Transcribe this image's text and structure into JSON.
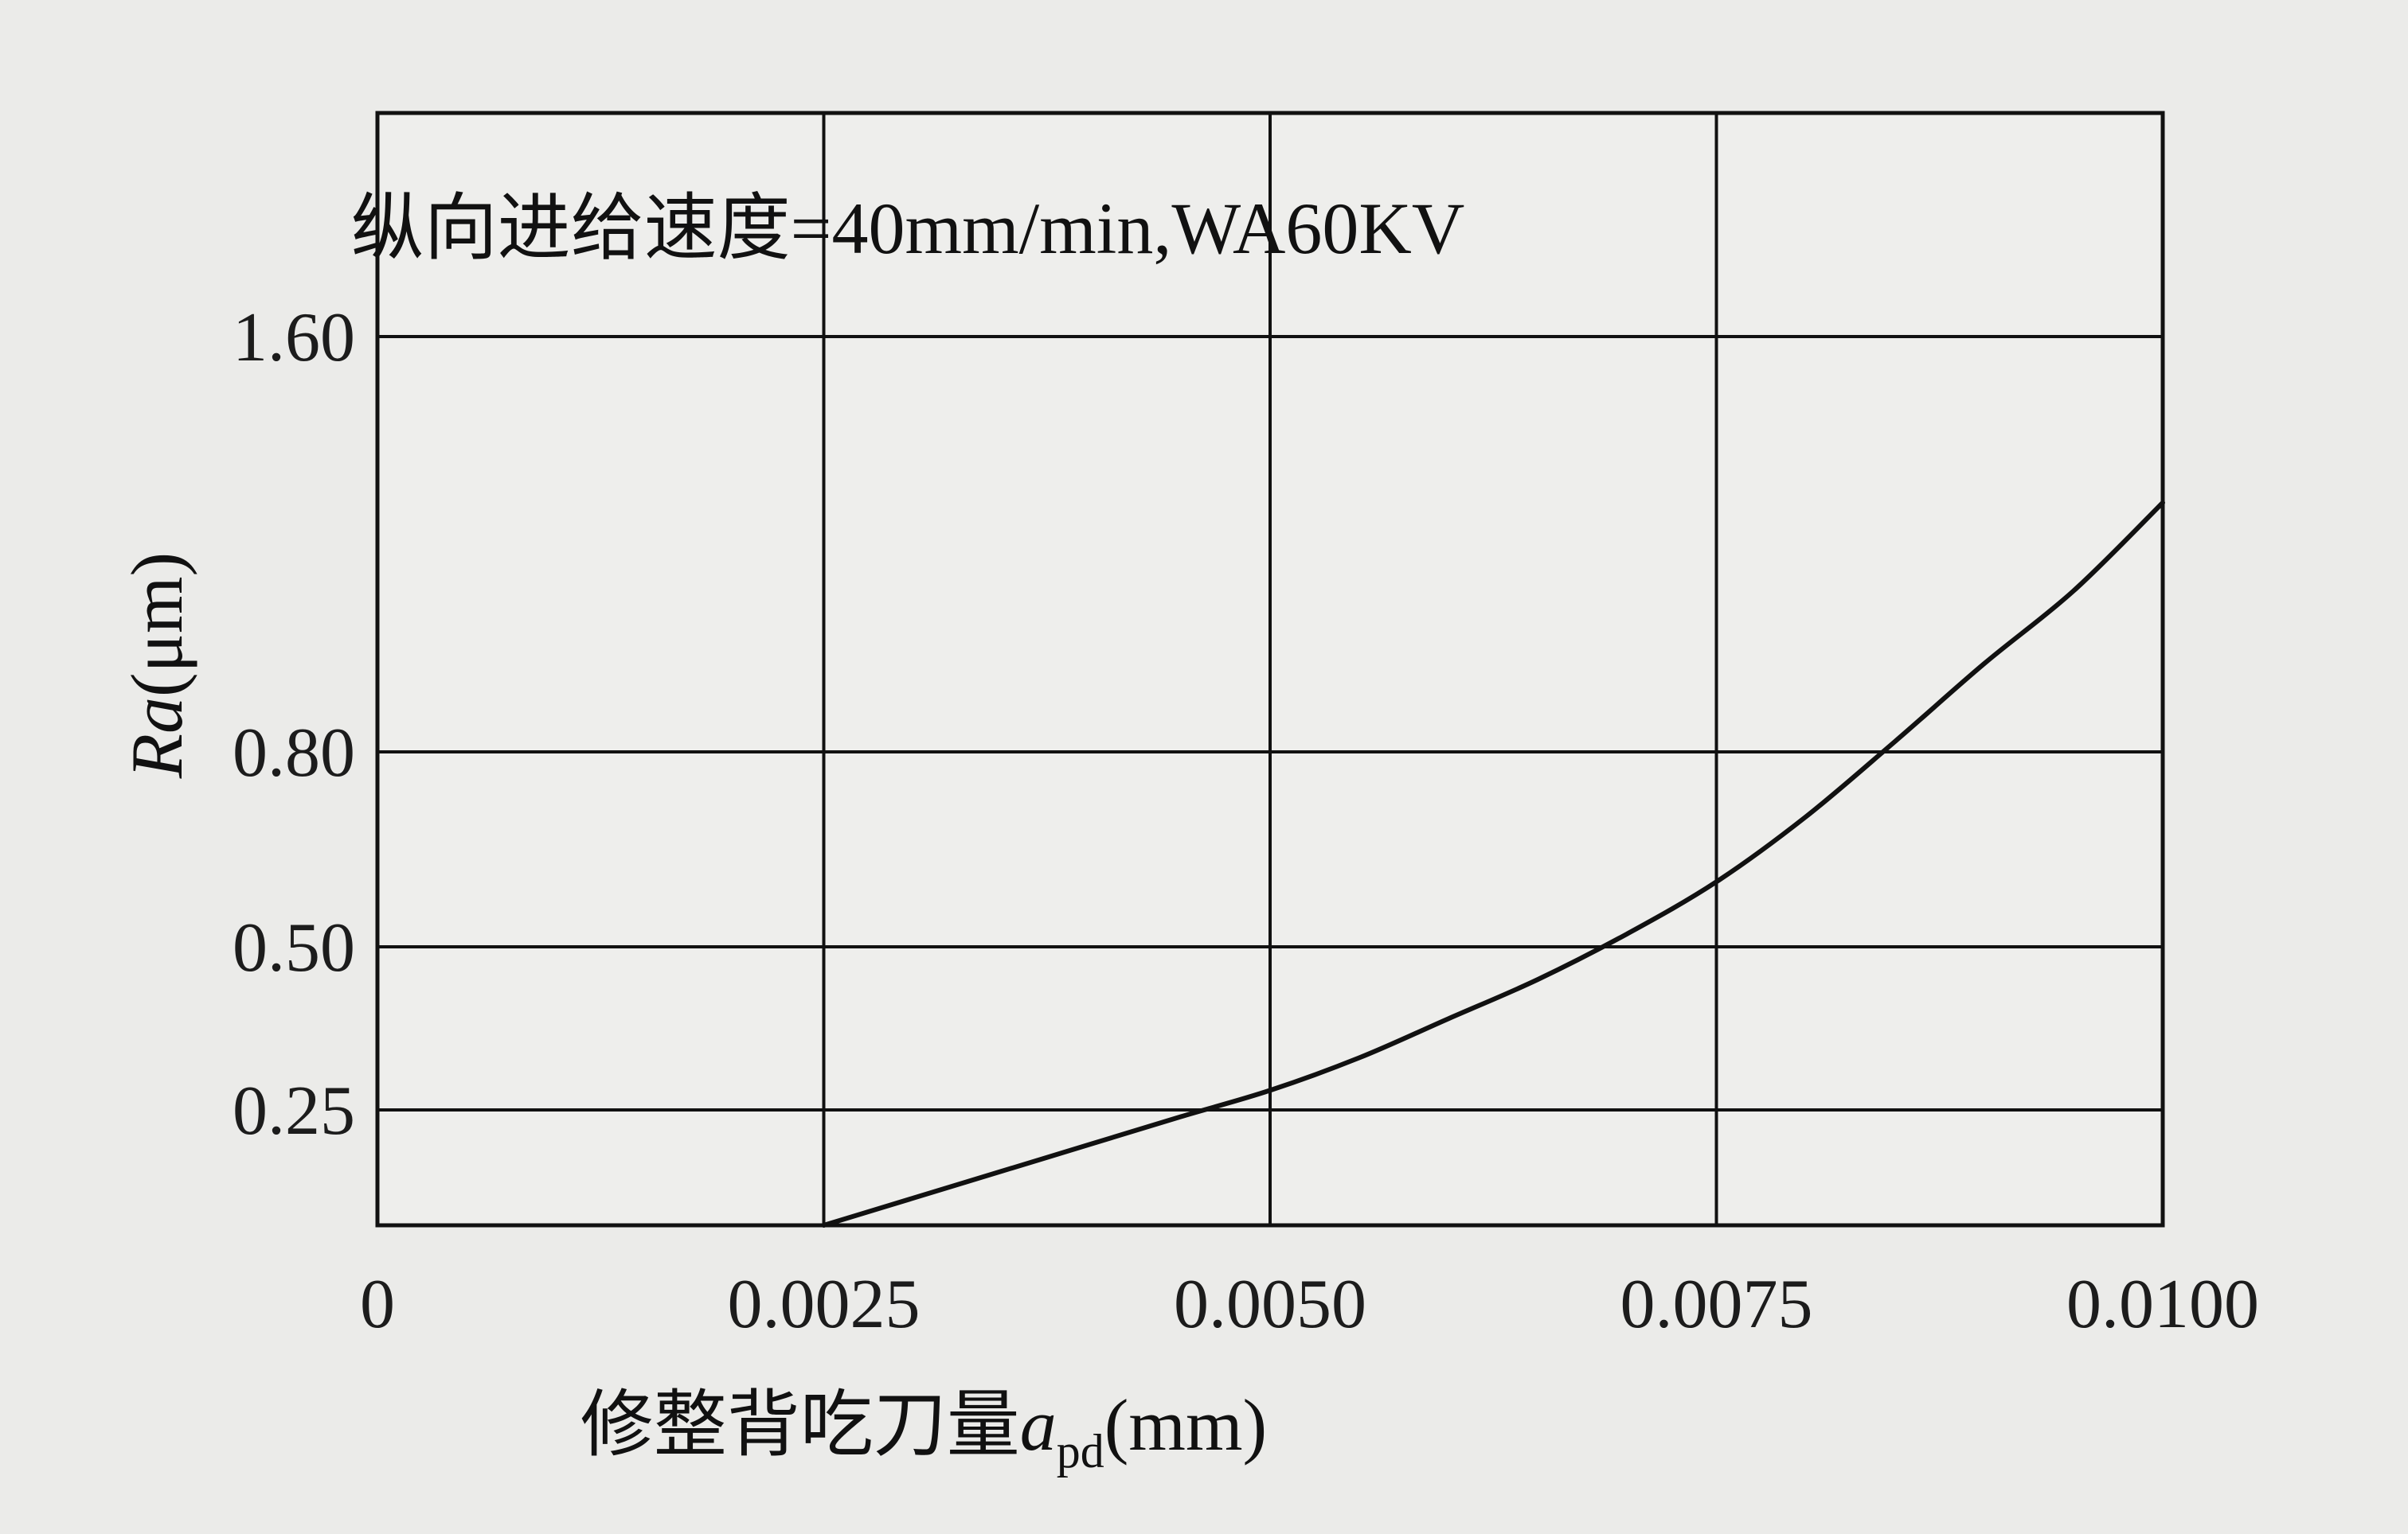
{
  "chart_data": {
    "type": "line",
    "title": "纵向进给速度=40mm/min,WA60KV",
    "xlabel": {
      "prefix": "修整背吃刀量",
      "symbol": "a",
      "subscript": "pd",
      "unit": "(mm)"
    },
    "ylabel": {
      "symbol": "Ra",
      "unit": "(μm)"
    },
    "x_ticks": [
      {
        "value": 0,
        "label": "0"
      },
      {
        "value": 0.0025,
        "label": "0.0025"
      },
      {
        "value": 0.005,
        "label": "0.0050"
      },
      {
        "value": 0.0075,
        "label": "0.0075"
      },
      {
        "value": 0.01,
        "label": "0.0100"
      }
    ],
    "y_ticks": [
      {
        "value": 0.25,
        "label": "0.25"
      },
      {
        "value": 0.5,
        "label": "0.50"
      },
      {
        "value": 0.8,
        "label": "0.80"
      },
      {
        "value": 1.6,
        "label": "1.60"
      }
    ],
    "xlim": [
      0,
      0.01
    ],
    "y_bottom_value": 0.08,
    "y_top_value": 1.6,
    "y_scale": "non-uniform (gridlines at labelled ticks)",
    "grid": true,
    "series": [
      {
        "x": [
          0.0025,
          0.003,
          0.0035,
          0.004,
          0.0045,
          0.005,
          0.0055,
          0.006,
          0.0065,
          0.007,
          0.0075,
          0.008,
          0.0085,
          0.009,
          0.0095,
          0.01
        ],
        "y": [
          0.08,
          0.12,
          0.16,
          0.2,
          0.24,
          0.28,
          0.33,
          0.39,
          0.45,
          0.52,
          0.6,
          0.7,
          0.82,
          0.97,
          1.11,
          1.28
        ]
      }
    ],
    "colors": {
      "background": "#ebebe9",
      "plot_background": "#eeeeec",
      "line": "#111111",
      "grid": "#111111"
    }
  }
}
